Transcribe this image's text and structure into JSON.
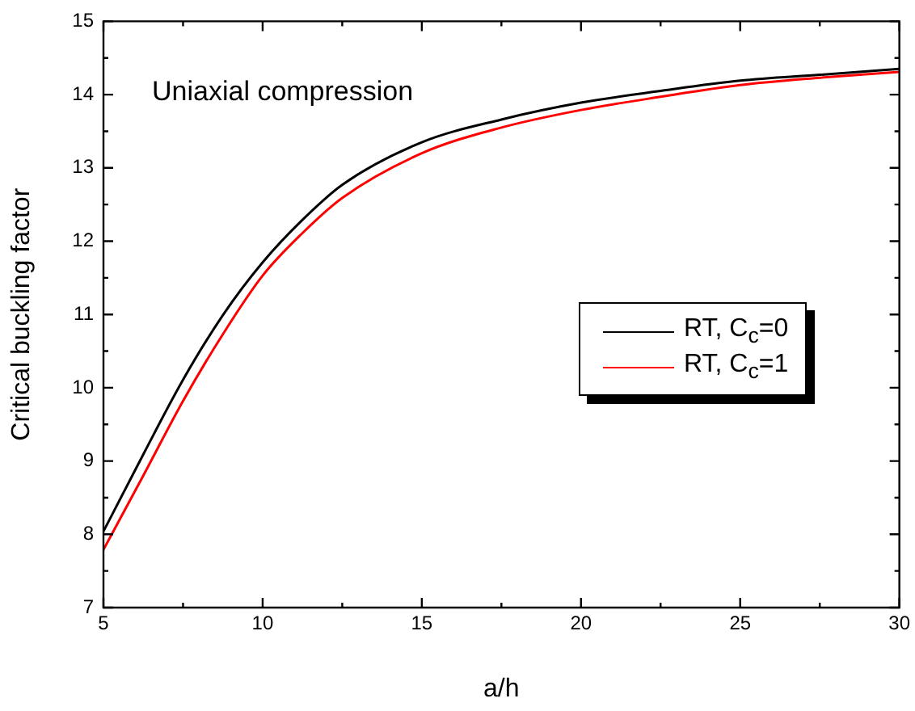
{
  "chart_data": {
    "type": "line",
    "xlabel": "a/h",
    "ylabel": "Critical buckling factor",
    "annotations": [
      "Uniaxial compression"
    ],
    "x": [
      5,
      6.25,
      7.5,
      8.75,
      10,
      11.25,
      12.5,
      15,
      17.5,
      20,
      22.5,
      25,
      27.5,
      30
    ],
    "series": [
      {
        "name": "RT, C$_{c}$=0",
        "color": "#000000",
        "values": [
          8.04,
          9.09,
          10.11,
          10.99,
          11.71,
          12.29,
          12.77,
          13.35,
          13.66,
          13.89,
          14.05,
          14.19,
          14.27,
          14.35
        ]
      },
      {
        "name": "RT, C$_{c}$=1",
        "color": "#ff0000",
        "values": [
          7.79,
          8.8,
          9.82,
          10.73,
          11.53,
          12.11,
          12.59,
          13.2,
          13.55,
          13.79,
          13.97,
          14.13,
          14.23,
          14.31
        ]
      }
    ],
    "xlim": [
      5,
      30
    ],
    "ylim": [
      7,
      15
    ],
    "xticks": [
      5,
      {
        "value": 7.5,
        "label": null
      },
      10,
      {
        "value": 12.5,
        "label": null
      },
      15,
      {
        "value": 17.5,
        "label": null
      },
      20,
      {
        "value": 22.5,
        "label": null
      },
      25,
      {
        "value": 27.5,
        "label": null
      },
      30
    ],
    "yticks": [
      7,
      {
        "value": 7.5,
        "label": null
      },
      8,
      {
        "value": 8.5,
        "label": null
      },
      9,
      {
        "value": 9.5,
        "label": null
      },
      10,
      {
        "value": 10.5,
        "label": null
      },
      11,
      {
        "value": 11.5,
        "label": null
      },
      12,
      {
        "value": 12.5,
        "label": null
      },
      13,
      {
        "value": 13.5,
        "label": null
      },
      14,
      {
        "value": 14.5,
        "label": null
      },
      15
    ],
    "grid": false,
    "legend": "right",
    "marker": "none",
    "line_style": "solid"
  }
}
